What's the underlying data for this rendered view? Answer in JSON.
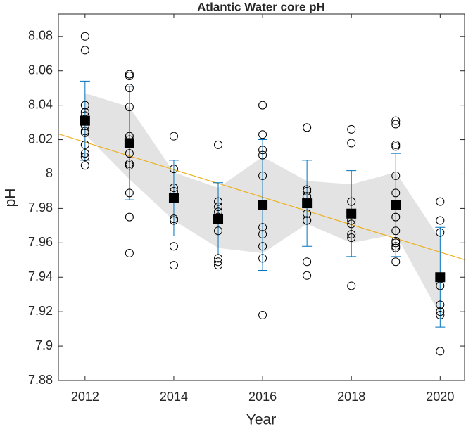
{
  "chart_data": {
    "type": "scatter",
    "title": "Atlantic Water core pH",
    "xlabel": "Year",
    "ylabel": "pH",
    "xlim": [
      2011.4,
      2020.55
    ],
    "ylim": [
      7.88,
      8.093
    ],
    "xticks": [
      2012,
      2014,
      2016,
      2018,
      2020
    ],
    "yticks": [
      7.88,
      7.9,
      7.92,
      7.94,
      7.96,
      7.98,
      8,
      8.02,
      8.04,
      8.06,
      8.08
    ],
    "band": {
      "x": [
        2012,
        2013,
        2014,
        2015,
        2016,
        2017,
        2018,
        2019,
        2020
      ],
      "upper": [
        8.047,
        8.039,
        8.001,
        7.992,
        8.01,
        7.996,
        7.994,
        8.001,
        7.962
      ],
      "lower": [
        8.023,
        7.997,
        7.973,
        7.957,
        7.954,
        7.971,
        7.96,
        7.965,
        7.918
      ],
      "color": "#e3e3e3"
    },
    "trend": {
      "x": [
        2011.4,
        2020.55
      ],
      "values": [
        8.0233,
        7.9502
      ],
      "color": "#edb120"
    },
    "samples": {
      "color": "#000000",
      "x": [
        2012,
        2012,
        2012,
        2012,
        2012,
        2012,
        2012,
        2012,
        2012,
        2012,
        2012,
        2012,
        2012,
        2013,
        2013,
        2013,
        2013,
        2013,
        2013,
        2013,
        2013,
        2013,
        2013,
        2013,
        2013,
        2014,
        2014,
        2014,
        2014,
        2014,
        2014,
        2014,
        2014,
        2014,
        2015,
        2015,
        2015,
        2015,
        2015,
        2015,
        2015,
        2015,
        2015,
        2016,
        2016,
        2016,
        2016,
        2016,
        2016,
        2016,
        2016,
        2016,
        2016,
        2016,
        2017,
        2017,
        2017,
        2017,
        2017,
        2017,
        2017,
        2017,
        2017,
        2017,
        2018,
        2018,
        2018,
        2018,
        2018,
        2018,
        2018,
        2018,
        2018,
        2019,
        2019,
        2019,
        2019,
        2019,
        2019,
        2019,
        2019,
        2019,
        2019,
        2019,
        2019,
        2019,
        2020,
        2020,
        2020,
        2020,
        2020,
        2020,
        2020,
        2020
      ],
      "values": [
        8.08,
        8.072,
        8.04,
        8.036,
        8.034,
        8.031,
        8.028,
        8.025,
        8.024,
        8.017,
        8.012,
        8.01,
        8.005,
        8.058,
        8.057,
        8.05,
        8.039,
        8.022,
        8.02,
        8.012,
        8.006,
        8.005,
        7.989,
        7.975,
        7.954,
        8.022,
        8.003,
        7.992,
        7.99,
        7.986,
        7.974,
        7.973,
        7.958,
        7.947,
        8.017,
        7.984,
        7.981,
        7.978,
        7.975,
        7.967,
        7.951,
        7.949,
        7.947,
        8.04,
        8.023,
        8.014,
        8.011,
        7.999,
        7.982,
        7.969,
        7.965,
        7.958,
        7.951,
        7.918,
        8.027,
        8.027,
        7.991,
        7.99,
        7.987,
        7.977,
        7.973,
        7.973,
        7.949,
        7.941,
        8.026,
        8.018,
        7.984,
        7.977,
        7.973,
        7.971,
        7.965,
        7.963,
        7.935,
        8.031,
        8.029,
        8.017,
        8.016,
        7.999,
        7.989,
        7.975,
        7.967,
        7.961,
        7.96,
        7.958,
        7.957,
        7.949,
        7.984,
        7.973,
        7.966,
        7.935,
        7.924,
        7.92,
        7.918,
        7.897
      ]
    },
    "means": {
      "color": "#000000",
      "error_color": "#0072bd",
      "x": [
        2012,
        2013,
        2014,
        2015,
        2016,
        2017,
        2018,
        2019,
        2020
      ],
      "values": [
        8.031,
        8.018,
        7.986,
        7.974,
        7.982,
        7.983,
        7.977,
        7.982,
        7.94
      ],
      "errors": [
        0.023,
        0.033,
        0.022,
        0.021,
        0.038,
        0.025,
        0.025,
        0.03,
        0.029
      ]
    }
  }
}
